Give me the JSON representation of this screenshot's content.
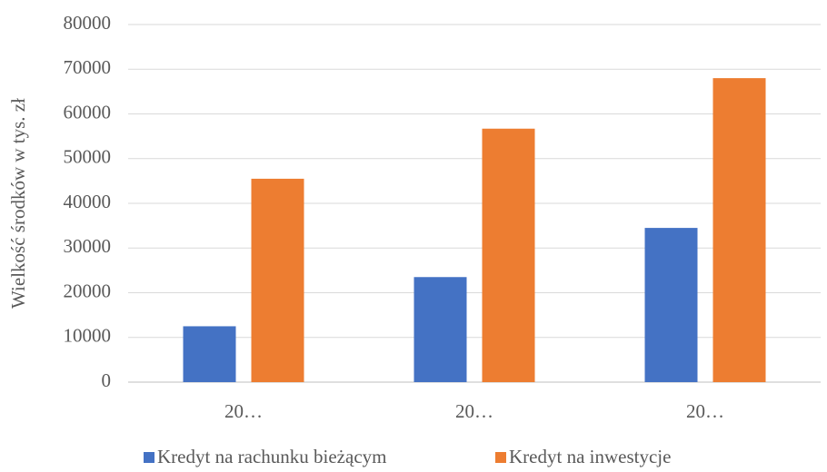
{
  "chart_data": {
    "type": "bar",
    "y_label": "Wielkość środków w tys. zł",
    "categories": [
      "20…",
      "20…",
      "20…"
    ],
    "series": [
      {
        "name": "Kredyt na rachunku bieżącym",
        "color": "#4472c4",
        "values": [
          12500,
          23500,
          34500
        ]
      },
      {
        "name": "Kredyt na inwestycje",
        "color": "#ed7d31",
        "values": [
          45500,
          56700,
          68000
        ]
      }
    ],
    "ylim": [
      0,
      80000
    ],
    "yticks": [
      0,
      10000,
      20000,
      30000,
      40000,
      50000,
      60000,
      70000,
      80000
    ],
    "grid": true,
    "legend": "bottom"
  }
}
